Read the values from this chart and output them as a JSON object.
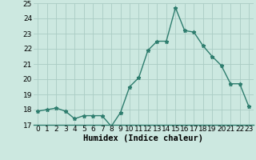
{
  "title": "",
  "xlabel": "Humidex (Indice chaleur)",
  "ylabel": "",
  "x": [
    0,
    1,
    2,
    3,
    4,
    5,
    6,
    7,
    8,
    9,
    10,
    11,
    12,
    13,
    14,
    15,
    16,
    17,
    18,
    19,
    20,
    21,
    22,
    23
  ],
  "y": [
    17.9,
    18.0,
    18.1,
    17.9,
    17.4,
    17.6,
    17.6,
    17.6,
    16.9,
    17.8,
    19.5,
    20.1,
    21.9,
    22.5,
    22.5,
    24.7,
    23.2,
    23.1,
    22.2,
    21.5,
    20.9,
    19.7,
    19.7,
    18.2
  ],
  "line_color": "#2e7d6e",
  "marker": "*",
  "bg_color": "#cce8e0",
  "grid_color": "#aaccc4",
  "ylim": [
    17,
    25
  ],
  "yticks": [
    17,
    18,
    19,
    20,
    21,
    22,
    23,
    24,
    25
  ],
  "xticks": [
    0,
    1,
    2,
    3,
    4,
    5,
    6,
    7,
    8,
    9,
    10,
    11,
    12,
    13,
    14,
    15,
    16,
    17,
    18,
    19,
    20,
    21,
    22,
    23
  ],
  "tick_fontsize": 6.5,
  "xlabel_fontsize": 7.5,
  "marker_size": 3.5,
  "linewidth": 1.0
}
